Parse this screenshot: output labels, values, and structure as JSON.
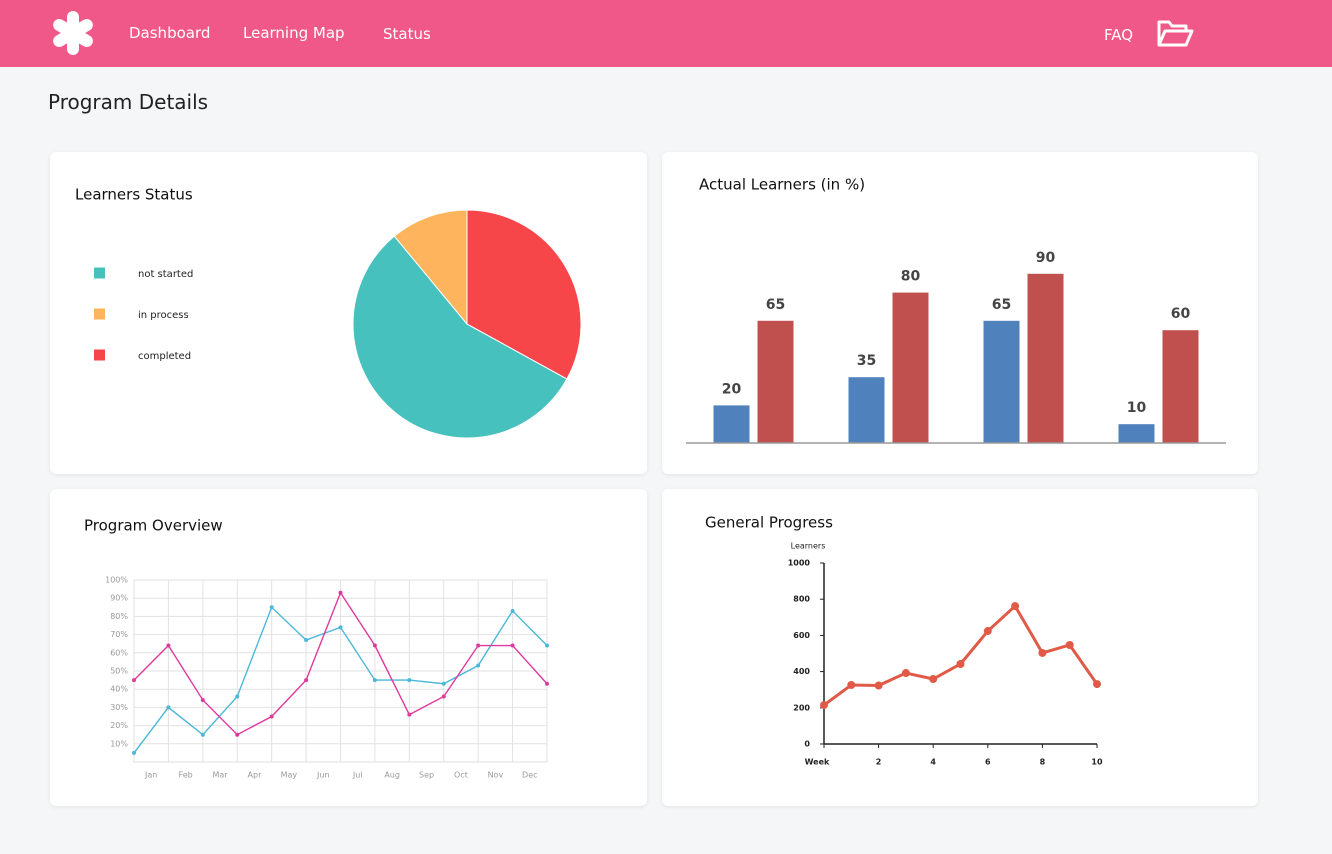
{
  "nav": {
    "items": [
      "Dashboard",
      "Learning Map",
      "Status"
    ],
    "faq": "FAQ"
  },
  "page_title": "Program Details",
  "chart_data": [
    {
      "type": "pie",
      "title": "Learners Status",
      "categories": [
        "not started",
        "in process",
        "completed"
      ],
      "values": [
        56,
        11,
        33
      ],
      "colors": [
        "#47c1be",
        "#fdb45c",
        "#f7464a"
      ],
      "legend": "left"
    },
    {
      "type": "bar",
      "title": "Actual Learners (in %)",
      "categories": [
        null,
        null,
        null,
        null
      ],
      "series": [
        {
          "color": "#4f81bd",
          "values": [
            20,
            35,
            65,
            10
          ]
        },
        {
          "color": "#c0504d",
          "values": [
            65,
            80,
            90,
            60
          ]
        }
      ],
      "ylim": [
        0,
        100
      ]
    },
    {
      "type": "line",
      "title": "Program Overview",
      "categories": [
        "Jan",
        "Feb",
        "Mar",
        "Apr",
        "May",
        "Jun",
        "Jul",
        "Aug",
        "Sep",
        "Oct",
        "Nov",
        "Dec",
        null
      ],
      "series": [
        {
          "color": "#4bb8d8",
          "values": [
            5,
            30,
            15,
            36,
            85,
            67,
            74,
            45,
            45,
            43,
            53,
            83,
            64
          ]
        },
        {
          "color": "#e0399e",
          "values": [
            45,
            64,
            34,
            15,
            25,
            45,
            93,
            64,
            26,
            36,
            64,
            64,
            43
          ]
        }
      ],
      "ylim": [
        0,
        100
      ],
      "yticks": [
        {
          "value": 10,
          "label": "10%"
        },
        {
          "value": 20,
          "label": "20%"
        },
        {
          "value": 30,
          "label": "30%"
        },
        {
          "value": 40,
          "label": "40%"
        },
        {
          "value": 50,
          "label": "50%"
        },
        {
          "value": 60,
          "label": "60%"
        },
        {
          "value": 70,
          "label": "70%"
        },
        {
          "value": 80,
          "label": "80%"
        },
        {
          "value": 90,
          "label": "90%"
        },
        {
          "value": 100,
          "label": "100%"
        }
      ],
      "grid": true
    },
    {
      "type": "line",
      "title": "General Progress",
      "ylabel": "Learners",
      "x": [
        0,
        1,
        2,
        3,
        4,
        5,
        6,
        7,
        8,
        9,
        10
      ],
      "series": [
        {
          "color": "#e05a47",
          "values": [
            215,
            326,
            323,
            392,
            359,
            442,
            624,
            762,
            503,
            547,
            331
          ]
        }
      ],
      "xlim": [
        0,
        10
      ],
      "xticks": [
        {
          "value": 0,
          "label": "Week"
        },
        2,
        4,
        6,
        8,
        10
      ],
      "ylim": [
        0,
        1000
      ],
      "yticks": [
        0,
        200,
        400,
        600,
        800,
        1000
      ],
      "grid": false
    }
  ]
}
